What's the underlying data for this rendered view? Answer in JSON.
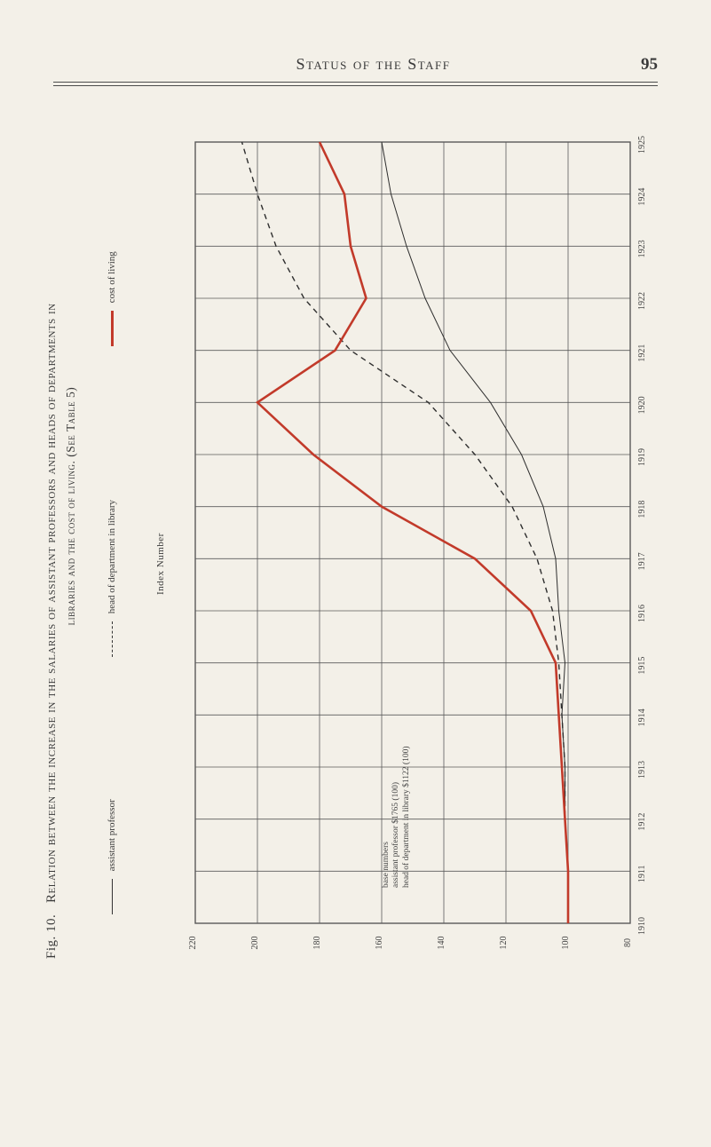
{
  "page": {
    "running_head": "Status of the Staff",
    "page_number": "95"
  },
  "figure": {
    "fig_label": "Fig. 10.",
    "caption_line1": "Relation between the increase in the salaries of assistant professors and heads of departments in",
    "caption_line2": "libraries and the cost of living. (See Table 5)"
  },
  "legend": {
    "series1": "assistant professor",
    "series2": "head of department in library",
    "series3": "cost of living"
  },
  "base_note": {
    "title": "base numbers",
    "l1": "assistant professor        $1765 (100)",
    "l2": "head of department in library $1122 (100)"
  },
  "chart": {
    "type": "line",
    "background_color": "#f3f0e8",
    "grid_color": "#5a5a5a",
    "grid_width": 0.8,
    "y_title": "Index Number",
    "years": [
      1910,
      1911,
      1912,
      1913,
      1914,
      1915,
      1916,
      1917,
      1918,
      1919,
      1920,
      1921,
      1922,
      1923,
      1924,
      1925
    ],
    "ylim": [
      80,
      220
    ],
    "yticks": [
      80,
      100,
      120,
      140,
      160,
      180,
      200,
      220
    ],
    "series": {
      "assistant_professor": {
        "color": "#2e2e2e",
        "width": 1.0,
        "dash": "none",
        "values": [
          100,
          100,
          101,
          101,
          102,
          101,
          103,
          104,
          108,
          115,
          125,
          138,
          146,
          152,
          157,
          160
        ]
      },
      "head_dept_library": {
        "color": "#2e2e2e",
        "width": 1.4,
        "dash": "6,5",
        "values": [
          100,
          100,
          101,
          101,
          102,
          103,
          105,
          110,
          118,
          130,
          145,
          170,
          185,
          194,
          200,
          205
        ]
      },
      "cost_of_living": {
        "color": "#c23a2a",
        "width": 2.6,
        "dash": "none",
        "values": [
          100,
          100,
          101,
          102,
          103,
          104,
          112,
          130,
          160,
          182,
          200,
          175,
          165,
          170,
          172,
          180
        ]
      }
    }
  }
}
